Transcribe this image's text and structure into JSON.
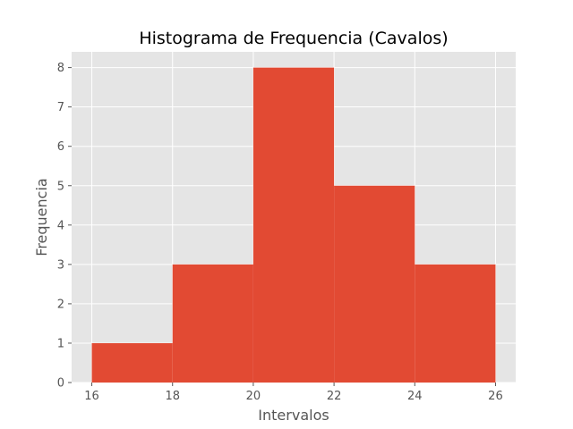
{
  "chart_data": {
    "type": "histogram",
    "title": "Histograma de Frequencia (Cavalos)",
    "xlabel": "Intervalos",
    "ylabel": "Frequencia",
    "bins": [
      {
        "start": 16,
        "end": 18,
        "count": 1
      },
      {
        "start": 18,
        "end": 20,
        "count": 3
      },
      {
        "start": 20,
        "end": 22,
        "count": 8
      },
      {
        "start": 22,
        "end": 24,
        "count": 5
      },
      {
        "start": 24,
        "end": 26,
        "count": 3
      }
    ],
    "xticks": [
      16,
      18,
      20,
      22,
      24,
      26
    ],
    "yticks": [
      0,
      1,
      2,
      3,
      4,
      5,
      6,
      7,
      8
    ],
    "xlim": [
      15.5,
      26.5
    ],
    "ylim": [
      0,
      8.4
    ],
    "grid": true,
    "style": "ggplot",
    "colors": {
      "bar": "#E24A33",
      "background": "#E5E5E5",
      "grid": "#FFFFFF",
      "text": "#555555"
    }
  }
}
